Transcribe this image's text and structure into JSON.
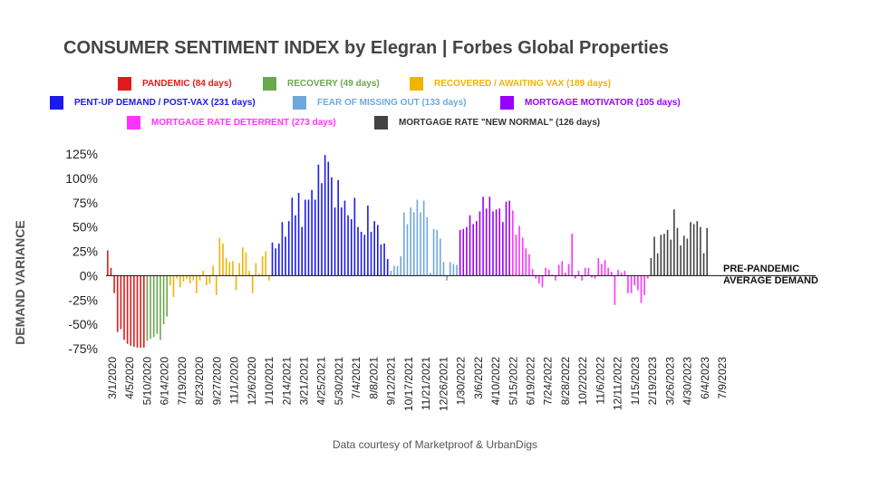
{
  "chart_data": {
    "type": "bar",
    "title": "CONSUMER SENTIMENT INDEX by Elegran | Forbes Global Properties",
    "ylabel": "DEMAND VARIANCE",
    "xlabel": "",
    "y_ticks": [
      "125%",
      "100%",
      "75%",
      "50%",
      "25%",
      "0%",
      "-25%",
      "-50%",
      "-75%"
    ],
    "ylim": [
      -75,
      125
    ],
    "x_ticks": [
      "3/1/2020",
      "4/5/2020",
      "5/10/2020",
      "6/14/2020",
      "7/19/2020",
      "8/23/2020",
      "9/27/2020",
      "11/1/2020",
      "12/6/2020",
      "1/10/2021",
      "2/14/2021",
      "3/21/2021",
      "4/25/2021",
      "5/30/2021",
      "7/4/2021",
      "8/8/2021",
      "9/12/2021",
      "10/17/2021",
      "11/21/2021",
      "12/26/2021",
      "1/30/2022",
      "3/6/2022",
      "4/10/2022",
      "5/15/2022",
      "6/19/2022",
      "7/24/2022",
      "8/28/2022",
      "10/2/2022",
      "11/6/2022",
      "12/11/2022",
      "1/15/2023",
      "2/19/2023",
      "3/26/2023",
      "4/30/2023",
      "6/4/2023",
      "7/9/2023"
    ],
    "reference_line": {
      "value": 0,
      "label_line1": "PRE-PANDEMIC",
      "label_line2": "AVERAGE DEMAND"
    },
    "legend_position": "top",
    "series": [
      {
        "name": "PANDEMIC (84 days)",
        "color": "#e31a1c",
        "values": [
          26,
          8,
          -18,
          -58,
          -55,
          -66,
          -70,
          -72,
          -73,
          -74,
          -74,
          -74
        ]
      },
      {
        "name": "RECOVERY (49 days)",
        "color": "#6aa84f",
        "values": [
          -67,
          -65,
          -63,
          -60,
          -66,
          -50,
          -42
        ]
      },
      {
        "name": "RECOVERED / AWAITING VAX (189 days)",
        "color": "#f1b400",
        "values": [
          -10,
          -22,
          -3,
          -12,
          -6,
          -3,
          -8,
          -5,
          -18,
          -5,
          5,
          -10,
          -8,
          10,
          -20,
          39,
          33,
          18,
          14,
          15,
          -15,
          13,
          29,
          24,
          5,
          -18,
          13,
          2,
          20,
          25,
          -5
        ]
      },
      {
        "name": "PENT-UP DEMAND / POST-VAX (231 days)",
        "color": "#1a1aee",
        "values": [
          34,
          28,
          33,
          55,
          40,
          56,
          80,
          62,
          85,
          50,
          78,
          78,
          88,
          78,
          114,
          95,
          124,
          117,
          101,
          70,
          98,
          70,
          77,
          62,
          58,
          80,
          50,
          45,
          42,
          72,
          45,
          56,
          52,
          32,
          33,
          17
        ]
      },
      {
        "name": "FEAR OF MISSING OUT (133 days)",
        "color": "#6fa8dc",
        "values": [
          5,
          10,
          10,
          20,
          65,
          53,
          70,
          65,
          78,
          65,
          77,
          60,
          3,
          48,
          47,
          38,
          14,
          -5,
          14,
          12,
          11
        ]
      },
      {
        "name": "MORTGAGE MOTIVATOR (105 days)",
        "color": "#9900ff",
        "values": [
          47,
          48,
          50,
          62,
          53,
          56,
          66,
          81,
          69,
          81,
          66,
          68,
          69,
          55,
          76,
          77
        ]
      },
      {
        "name": "MORTGAGE RATE DETERRENT (273 days)",
        "color": "#ff33ff",
        "values": [
          67,
          42,
          51,
          39,
          28,
          22,
          7,
          -3,
          -8,
          -12,
          8,
          6,
          1,
          -5,
          11,
          15,
          3,
          12,
          43,
          -3,
          5,
          -5,
          8,
          8,
          -2,
          -3,
          18,
          12,
          16,
          8,
          4,
          -30,
          6,
          3,
          5,
          -18,
          -18,
          -10,
          -15,
          -28,
          -20,
          -3
        ]
      },
      {
        "name": "MORTGAGE RATE \"NEW NORMAL\" (126 days)",
        "color": "#444444",
        "values": [
          18,
          40,
          23,
          42,
          43,
          47,
          37,
          68,
          49,
          31,
          41,
          38,
          55,
          53,
          56,
          50,
          23,
          49
        ]
      }
    ],
    "credit": "Data courtesy of Marketproof & UrbanDigs"
  }
}
